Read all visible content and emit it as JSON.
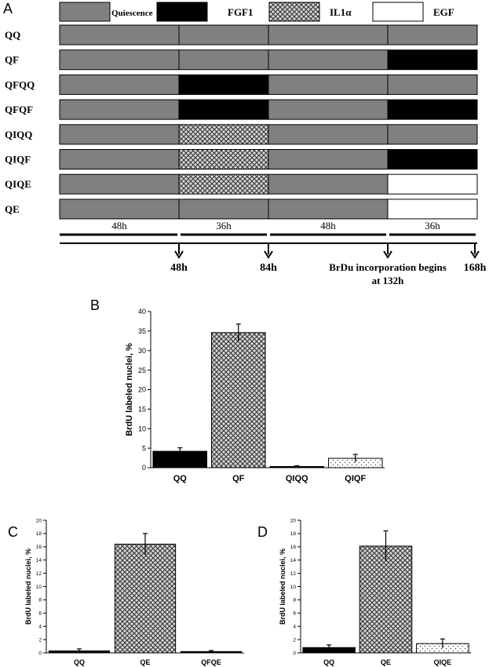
{
  "panel_labels": [
    "A",
    "B",
    "C",
    "D"
  ],
  "timeline": {
    "legend": [
      {
        "label": "Quiescence",
        "fill": "quiescence"
      },
      {
        "label": "FGF1",
        "fill": "fgf1"
      },
      {
        "label": "IL1α",
        "fill": "il1a"
      },
      {
        "label": "EGF",
        "fill": "egf"
      }
    ],
    "phase_durations_h": [
      48,
      36,
      48,
      36
    ],
    "rows": [
      {
        "name": "QQ",
        "phases": [
          "quiescence",
          "quiescence",
          "quiescence",
          "quiescence"
        ]
      },
      {
        "name": "QF",
        "phases": [
          "quiescence",
          "quiescence",
          "quiescence",
          "fgf1"
        ]
      },
      {
        "name": "QFQQ",
        "phases": [
          "quiescence",
          "fgf1",
          "quiescence",
          "quiescence"
        ]
      },
      {
        "name": "QFQF",
        "phases": [
          "quiescence",
          "fgf1",
          "quiescence",
          "fgf1"
        ]
      },
      {
        "name": "QIQQ",
        "phases": [
          "quiescence",
          "il1a",
          "quiescence",
          "quiescence"
        ]
      },
      {
        "name": "QIQF",
        "phases": [
          "quiescence",
          "il1a",
          "quiescence",
          "fgf1"
        ]
      },
      {
        "name": "QIQE",
        "phases": [
          "quiescence",
          "il1a",
          "quiescence",
          "egf"
        ]
      },
      {
        "name": "QE",
        "phases": [
          "quiescence",
          "quiescence",
          "quiescence",
          "egf"
        ]
      }
    ],
    "duration_labels": [
      "48h",
      "36h",
      "48h",
      "36h"
    ],
    "time_markers": [
      "48h",
      "84h",
      "168h"
    ],
    "brdu_note_line1": "BrDu incorporation begins",
    "brdu_note_line2": "at 132h"
  },
  "colors": {
    "quiescence": "#808080",
    "fgf1": "#000000",
    "il1a_bg": "#d8d8d8",
    "il1a_fg": "#404040",
    "egf": "#ffffff"
  },
  "chart_data": [
    {
      "panel": "B",
      "type": "bar",
      "ylabel": "BrdU labeled nuclei, %",
      "xlabel": "",
      "categories": [
        "QQ",
        "QF",
        "QIQQ",
        "QIQF"
      ],
      "values": [
        4.2,
        34.6,
        0.3,
        2.4
      ],
      "errors": [
        0.9,
        2.2,
        0.2,
        1.0
      ],
      "fills": [
        "fgf1",
        "il1a",
        "fgf1",
        "dots"
      ],
      "ylim": [
        0,
        40
      ],
      "yticks": [
        0,
        5,
        10,
        15,
        20,
        25,
        30,
        35,
        40
      ]
    },
    {
      "panel": "C",
      "type": "bar",
      "ylabel": "BrdU labeled nuclei, %",
      "xlabel": "",
      "categories": [
        "QQ",
        "QE",
        "QFQE"
      ],
      "values": [
        0.3,
        16.4,
        0.2
      ],
      "errors": [
        0.3,
        1.6,
        0.15
      ],
      "fills": [
        "fgf1",
        "il1a",
        "fgf1"
      ],
      "ylim": [
        0,
        20
      ],
      "yticks": [
        0,
        2,
        4,
        6,
        8,
        10,
        12,
        14,
        16,
        18,
        20
      ]
    },
    {
      "panel": "D",
      "type": "bar",
      "ylabel": "BrdU labeled nuclei, %",
      "xlabel": "",
      "categories": [
        "QQ",
        "QE",
        "QIQE"
      ],
      "values": [
        0.8,
        16.1,
        1.4
      ],
      "errors": [
        0.4,
        2.3,
        0.7
      ],
      "fills": [
        "fgf1",
        "il1a",
        "dots"
      ],
      "ylim": [
        0,
        20
      ],
      "yticks": [
        0,
        2,
        4,
        6,
        8,
        10,
        12,
        14,
        16,
        18,
        20
      ]
    }
  ]
}
